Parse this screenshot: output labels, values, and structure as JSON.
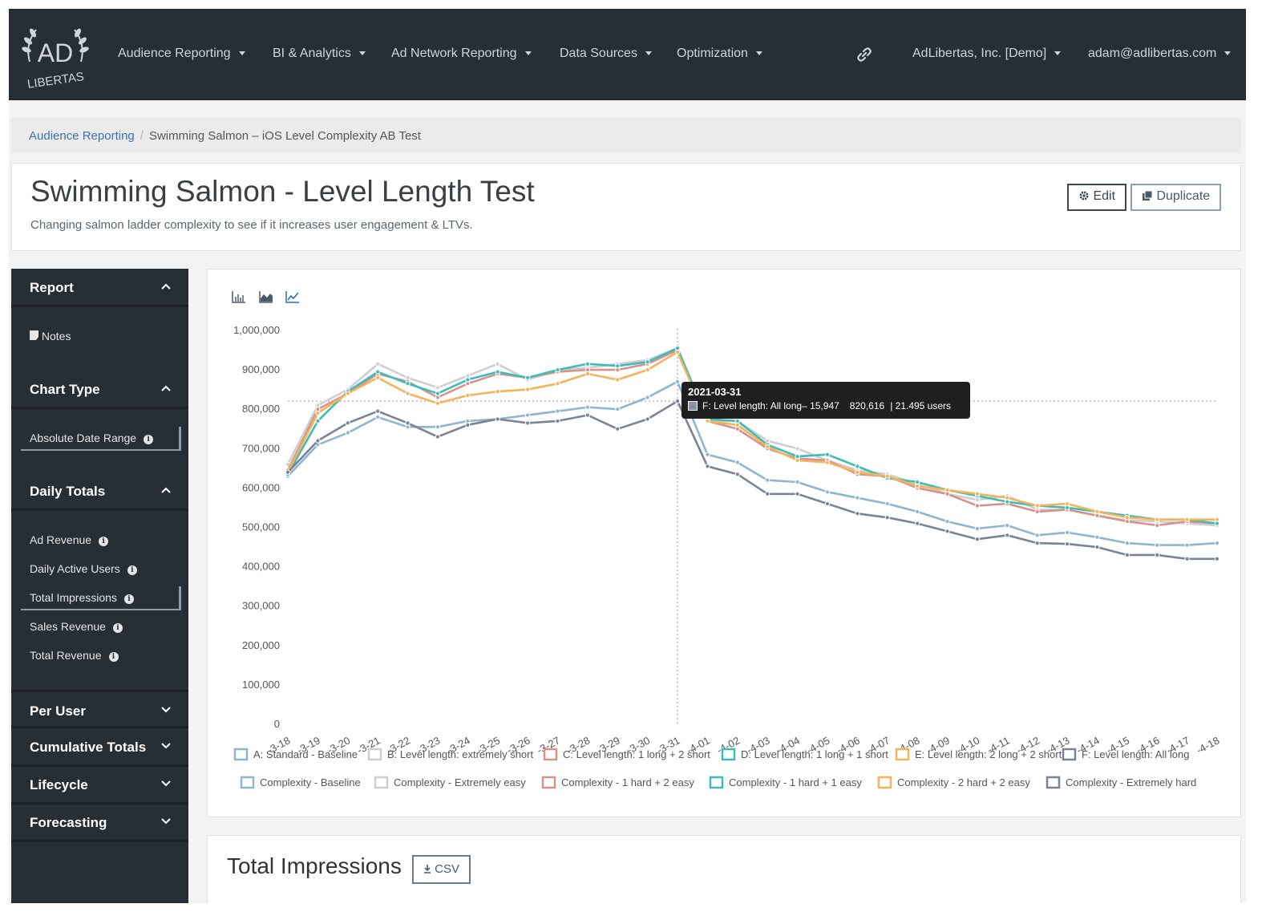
{
  "nav": {
    "logo_text": "AD LIBERTAS",
    "items": [
      {
        "label": "Audience Reporting"
      },
      {
        "label": "BI & Analytics"
      },
      {
        "label": "Ad Network Reporting"
      },
      {
        "label": "Data Sources"
      },
      {
        "label": "Optimization"
      }
    ],
    "link_icon": "link-icon",
    "org": "AdLibertas, Inc. [Demo]",
    "user": "adam@adlibertas.com"
  },
  "breadcrumb": {
    "root": "Audience Reporting",
    "current": "Swimming Salmon – iOS Level Complexity AB Test"
  },
  "header": {
    "title": "Swimming Salmon - Level Length Test",
    "subtitle": "Changing salmon ladder complexity to see if it increases user engagement & LTVs.",
    "edit_label": "Edit",
    "duplicate_label": "Duplicate"
  },
  "sidebar": {
    "report": {
      "title": "Report",
      "notes": "Notes"
    },
    "chart_type": {
      "title": "Chart Type",
      "selected": "Absolute Date Range"
    },
    "daily_totals": {
      "title": "Daily Totals",
      "items": [
        "Ad Revenue",
        "Daily Active Users",
        "Total Impressions",
        "Sales Revenue",
        "Total Revenue"
      ],
      "active": "Total Impressions"
    },
    "collapsed": [
      "Per User",
      "Cumulative Totals",
      "Lifecycle",
      "Forecasting"
    ]
  },
  "chart_toolbar": [
    "bar-chart-icon",
    "area-chart-icon",
    "line-chart-icon"
  ],
  "tooltip": {
    "date": "2021-03-31",
    "label": "F: Level length: All long– 15,947",
    "value": "820,616",
    "users": "| 21.495 users"
  },
  "chart_data": {
    "type": "line",
    "ylim": [
      0,
      1000000
    ],
    "y_ticks": [
      "1,000,000",
      "900,000",
      "800,000",
      "700,000",
      "600,000",
      "500,000",
      "400,000",
      "300,000",
      "200,000",
      "100,000",
      "0"
    ],
    "x": [
      "2021-03-18",
      "2021-03-19",
      "2021-03-20",
      "2021-03-21",
      "2021-03-22",
      "2021-03-23",
      "2021-03-24",
      "2021-03-25",
      "2021-03-26",
      "2021-03-27",
      "2021-03-28",
      "2021-03-29",
      "2021-03-30",
      "2021-03-31",
      "2021-04-01",
      "2021-04-02",
      "2021-04-03",
      "2021-04-04",
      "2021-04-05",
      "2021-04-06",
      "2021-04-07",
      "2021-04-08",
      "2021-04-09",
      "2021-04-10",
      "2021-04-11",
      "2021-04-12",
      "2021-04-13",
      "2021-04-14",
      "2021-04-15",
      "2021-04-16",
      "2021-04-17",
      "2021-04-18"
    ],
    "x_tick_labels": [
      "-3-18",
      "-3-19",
      "-3-20",
      "-3-21",
      "-3-22",
      "-3-23",
      "-3-24",
      "-3-25",
      "-3-26",
      "-3-27",
      "-3-28",
      "-3-29",
      "-3-30",
      "-3-31",
      "-4-01",
      "-4-02",
      "-4-03",
      "-4-04",
      "-4-05",
      "-4-06",
      "-4-07",
      "-4-08",
      "-4-09",
      "-4-10",
      "-4-11",
      "-4-12",
      "-4-13",
      "-4-14",
      "-4-15",
      "-4-16",
      "-4-17",
      "-4-18"
    ],
    "crosshair": {
      "x": "2021-03-31",
      "y": 820616
    },
    "series": [
      {
        "name": "A: Standard - Baseline",
        "color": "#8fb6cf",
        "values": [
          630000,
          710000,
          740000,
          780000,
          755000,
          755000,
          770000,
          775000,
          785000,
          795000,
          805000,
          800000,
          830000,
          870000,
          685000,
          665000,
          620000,
          615000,
          590000,
          575000,
          560000,
          540000,
          515000,
          497000,
          505000,
          480000,
          487000,
          475000,
          460000,
          455000,
          455000,
          460000
        ]
      },
      {
        "name": "B: Level length: extremely short",
        "color": "#cfcfcf",
        "values": [
          660000,
          810000,
          850000,
          915000,
          880000,
          855000,
          885000,
          915000,
          875000,
          900000,
          905000,
          915000,
          925000,
          955000,
          770000,
          770000,
          720000,
          700000,
          670000,
          645000,
          635000,
          610000,
          585000,
          570000,
          580000,
          545000,
          545000,
          530000,
          518000,
          515000,
          510000,
          505000
        ]
      },
      {
        "name": "C: Level length: 1 long + 2 short",
        "color": "#d4938c",
        "values": [
          645000,
          800000,
          840000,
          890000,
          870000,
          830000,
          865000,
          890000,
          880000,
          895000,
          900000,
          900000,
          915000,
          950000,
          770000,
          750000,
          700000,
          675000,
          670000,
          635000,
          630000,
          600000,
          585000,
          555000,
          560000,
          540000,
          545000,
          530000,
          515000,
          505000,
          515000,
          510000
        ]
      },
      {
        "name": "D: Level length: 1 long + 1 short",
        "color": "#3ebdb8",
        "values": [
          635000,
          770000,
          845000,
          895000,
          865000,
          840000,
          875000,
          895000,
          880000,
          900000,
          915000,
          910000,
          920000,
          955000,
          775000,
          770000,
          710000,
          680000,
          685000,
          655000,
          625000,
          615000,
          595000,
          580000,
          565000,
          555000,
          550000,
          540000,
          530000,
          520000,
          520000,
          510000
        ]
      },
      {
        "name": "E: Level length: 2 long + 2 short",
        "color": "#f7b35b",
        "values": [
          640000,
          790000,
          840000,
          880000,
          840000,
          815000,
          835000,
          845000,
          850000,
          865000,
          890000,
          875000,
          900000,
          945000,
          770000,
          760000,
          705000,
          670000,
          665000,
          640000,
          630000,
          605000,
          595000,
          585000,
          575000,
          555000,
          560000,
          540000,
          525000,
          520000,
          520000,
          520000
        ]
      },
      {
        "name": "F: Level length: All long",
        "color": "#7b8497",
        "values": [
          640000,
          720000,
          765000,
          795000,
          765000,
          730000,
          760000,
          775000,
          765000,
          770000,
          785000,
          750000,
          775000,
          820616,
          655000,
          635000,
          585000,
          585000,
          560000,
          535000,
          525000,
          510000,
          490000,
          470000,
          480000,
          460000,
          458000,
          450000,
          430000,
          430000,
          420000,
          420000
        ]
      }
    ],
    "legend": [
      {
        "label": "A: Standard - Baseline",
        "color": "#8fb6cf"
      },
      {
        "label": "B: Level length: extremely short",
        "color": "#cfcfcf"
      },
      {
        "label": "C: Level length: 1 long + 2 short",
        "color": "#d4938c"
      },
      {
        "label": "D: Level length: 1 long + 1 short",
        "color": "#3ebdb8"
      },
      {
        "label": "E: Level length: 2 long + 2 short",
        "color": "#f7b35b"
      },
      {
        "label": "F: Level length: All long",
        "color": "#7b8497"
      },
      {
        "label": "Complexity - Baseline",
        "color": "#8fb6cf"
      },
      {
        "label": "Complexity - Extremely easy",
        "color": "#cfcfcf"
      },
      {
        "label": "Complexity - 1 hard + 2 easy",
        "color": "#d4938c"
      },
      {
        "label": "Complexity - 1 hard + 1 easy",
        "color": "#3ebdb8"
      },
      {
        "label": "Complexity - 2 hard + 2 easy",
        "color": "#f7b35b"
      },
      {
        "label": "Complexity - Extremely hard",
        "color": "#7b8497"
      }
    ],
    "legend_placement": "bottom",
    "grid": false
  },
  "bottom": {
    "title": "Total Impressions",
    "csv_label": "CSV"
  }
}
